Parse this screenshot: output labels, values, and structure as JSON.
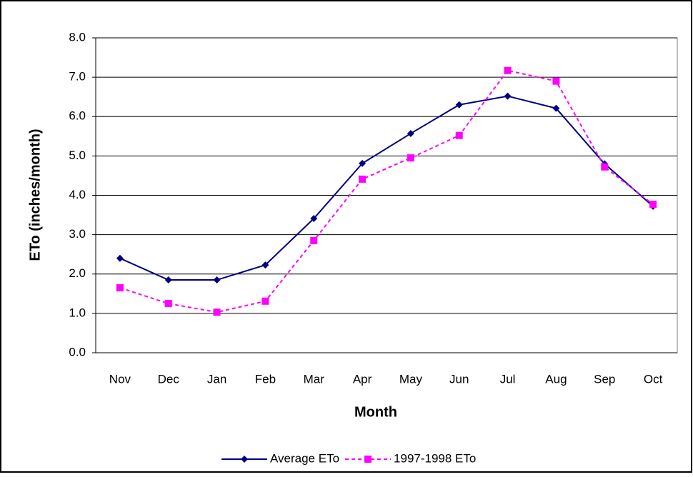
{
  "chart_data": {
    "type": "line",
    "x_label": "Month",
    "y_label": "ETo (inches/month)",
    "categories": [
      "Nov",
      "Dec",
      "Jan",
      "Feb",
      "Mar",
      "Apr",
      "May",
      "Jun",
      "Jul",
      "Aug",
      "Sep",
      "Oct"
    ],
    "series": [
      {
        "name": "Average ETo",
        "color": "#000080",
        "line_style": "solid",
        "marker": "diamond",
        "values": [
          2.4,
          1.85,
          1.85,
          2.23,
          3.41,
          4.81,
          5.57,
          6.3,
          6.52,
          6.21,
          4.8,
          3.72
        ]
      },
      {
        "name": "1997-1998 ETo",
        "color": "#ff00ff",
        "line_style": "dashed",
        "marker": "square",
        "values": [
          1.65,
          1.25,
          1.03,
          1.31,
          2.85,
          4.41,
          4.95,
          5.52,
          7.17,
          6.9,
          4.72,
          3.77
        ]
      }
    ],
    "ylim": [
      0,
      8
    ],
    "yticks": [
      {
        "value": 0,
        "label": "0.0"
      },
      {
        "value": 1,
        "label": "1.0"
      },
      {
        "value": 2,
        "label": "2.0"
      },
      {
        "value": 3,
        "label": "3.0"
      },
      {
        "value": 4,
        "label": "4.0"
      },
      {
        "value": 5,
        "label": "5.0"
      },
      {
        "value": 6,
        "label": "6.0"
      },
      {
        "value": 7,
        "label": "7.0"
      },
      {
        "value": 8,
        "label": "8.0"
      }
    ],
    "grid": true,
    "legend": "bottom"
  }
}
